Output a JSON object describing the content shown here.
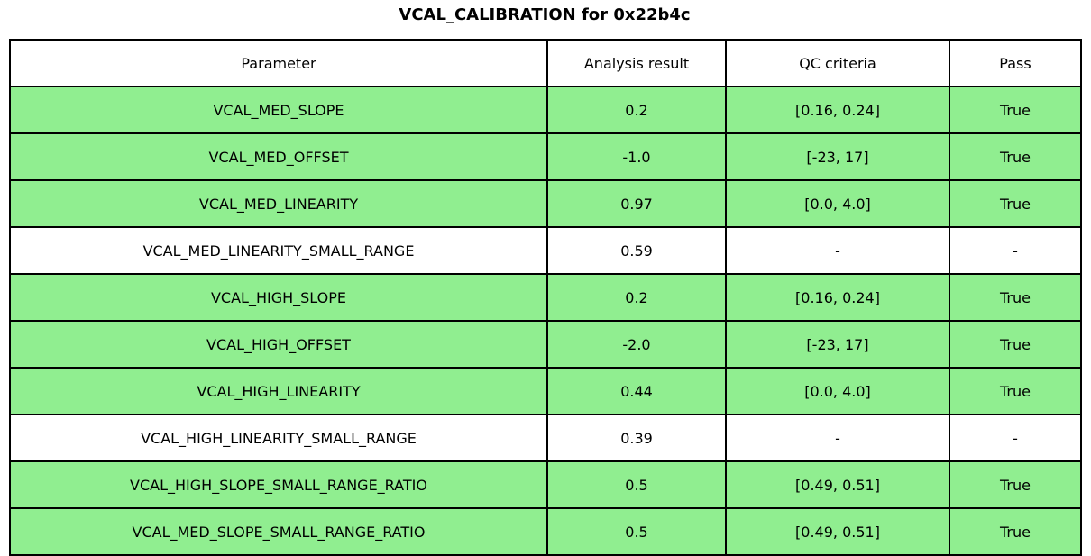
{
  "title": "VCAL_CALIBRATION for 0x22b4c",
  "colors": {
    "pass_row": "#90ee90",
    "default_row": "#ffffff",
    "border": "#000000"
  },
  "table": {
    "columns": [
      "Parameter",
      "Analysis result",
      "QC criteria",
      "Pass"
    ],
    "rows": [
      {
        "parameter": "VCAL_MED_SLOPE",
        "result": "0.2",
        "criteria": "[0.16, 0.24]",
        "pass": "True",
        "highlight": true
      },
      {
        "parameter": "VCAL_MED_OFFSET",
        "result": "-1.0",
        "criteria": "[-23, 17]",
        "pass": "True",
        "highlight": true
      },
      {
        "parameter": "VCAL_MED_LINEARITY",
        "result": "0.97",
        "criteria": "[0.0, 4.0]",
        "pass": "True",
        "highlight": true
      },
      {
        "parameter": "VCAL_MED_LINEARITY_SMALL_RANGE",
        "result": "0.59",
        "criteria": "-",
        "pass": "-",
        "highlight": false
      },
      {
        "parameter": "VCAL_HIGH_SLOPE",
        "result": "0.2",
        "criteria": "[0.16, 0.24]",
        "pass": "True",
        "highlight": true
      },
      {
        "parameter": "VCAL_HIGH_OFFSET",
        "result": "-2.0",
        "criteria": "[-23, 17]",
        "pass": "True",
        "highlight": true
      },
      {
        "parameter": "VCAL_HIGH_LINEARITY",
        "result": "0.44",
        "criteria": "[0.0, 4.0]",
        "pass": "True",
        "highlight": true
      },
      {
        "parameter": "VCAL_HIGH_LINEARITY_SMALL_RANGE",
        "result": "0.39",
        "criteria": "-",
        "pass": "-",
        "highlight": false
      },
      {
        "parameter": "VCAL_HIGH_SLOPE_SMALL_RANGE_RATIO",
        "result": "0.5",
        "criteria": "[0.49, 0.51]",
        "pass": "True",
        "highlight": true
      },
      {
        "parameter": "VCAL_MED_SLOPE_SMALL_RANGE_RATIO",
        "result": "0.5",
        "criteria": "[0.49, 0.51]",
        "pass": "True",
        "highlight": true
      }
    ]
  },
  "chart_data": {
    "type": "table",
    "title": "VCAL_CALIBRATION for 0x22b4c",
    "columns": [
      "Parameter",
      "Analysis result",
      "QC criteria",
      "Pass"
    ],
    "rows": [
      [
        "VCAL_MED_SLOPE",
        "0.2",
        "[0.16, 0.24]",
        "True"
      ],
      [
        "VCAL_MED_OFFSET",
        "-1.0",
        "[-23, 17]",
        "True"
      ],
      [
        "VCAL_MED_LINEARITY",
        "0.97",
        "[0.0, 4.0]",
        "True"
      ],
      [
        "VCAL_MED_LINEARITY_SMALL_RANGE",
        "0.59",
        "-",
        "-"
      ],
      [
        "VCAL_HIGH_SLOPE",
        "0.2",
        "[0.16, 0.24]",
        "True"
      ],
      [
        "VCAL_HIGH_OFFSET",
        "-2.0",
        "[-23, 17]",
        "True"
      ],
      [
        "VCAL_HIGH_LINEARITY",
        "0.44",
        "[0.0, 4.0]",
        "True"
      ],
      [
        "VCAL_HIGH_LINEARITY_SMALL_RANGE",
        "0.39",
        "-",
        "-"
      ],
      [
        "VCAL_HIGH_SLOPE_SMALL_RANGE_RATIO",
        "0.5",
        "[0.49, 0.51]",
        "True"
      ],
      [
        "VCAL_MED_SLOPE_SMALL_RANGE_RATIO",
        "0.5",
        "[0.49, 0.51]",
        "True"
      ]
    ],
    "row_highlight_color": "#90ee90",
    "highlighted_rows": [
      0,
      1,
      2,
      4,
      5,
      6,
      8,
      9
    ]
  }
}
